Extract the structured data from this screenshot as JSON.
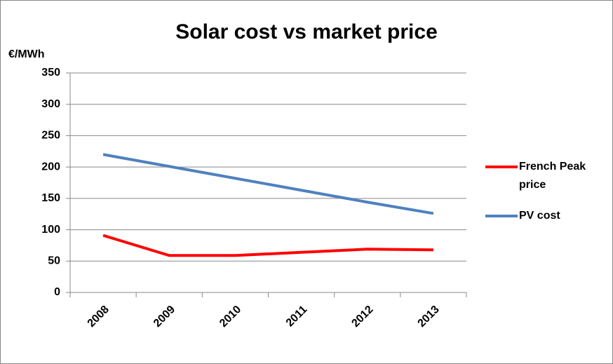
{
  "chart_data": {
    "type": "line",
    "title": "Solar cost vs market price",
    "y_label": "€/MWh",
    "categories": [
      "2008",
      "2009",
      "2010",
      "2011",
      "2012",
      "2013"
    ],
    "series": [
      {
        "name": "French Peak price",
        "color": "#ff0000",
        "values": [
          91,
          59,
          59,
          64,
          69,
          68
        ]
      },
      {
        "name": "PV cost",
        "color": "#4f81bd",
        "values": [
          220,
          201,
          182,
          163,
          144,
          126
        ]
      }
    ],
    "ylim": [
      0,
      350
    ],
    "yticks": [
      0,
      50,
      100,
      150,
      200,
      250,
      300,
      350
    ],
    "grid": true,
    "legend": "right"
  }
}
